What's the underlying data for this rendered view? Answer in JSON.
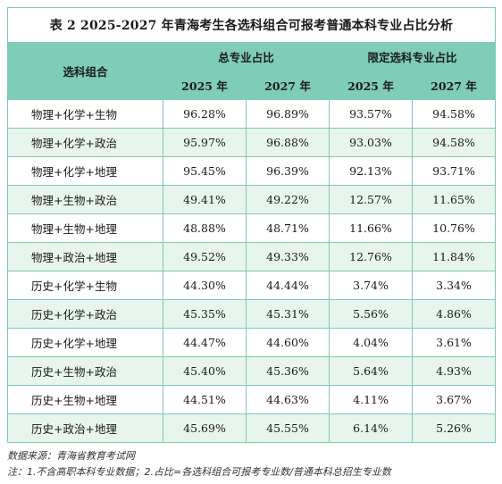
{
  "title": "表 2  2025-2027 年青海考生各选科组合可报考普通本科专业占比分析",
  "headers": {
    "combo": "选科组合",
    "group_total": "总专业占比",
    "group_limited": "限定选科专业占比",
    "years": [
      "2025 年",
      "2027 年",
      "2025 年",
      "2027 年"
    ]
  },
  "rows": [
    {
      "combo": "物理+化学+生物",
      "t2025": "96.28%",
      "t2027": "96.89%",
      "l2025": "93.57%",
      "l2027": "94.58%"
    },
    {
      "combo": "物理+化学+政治",
      "t2025": "95.97%",
      "t2027": "96.88%",
      "l2025": "93.03%",
      "l2027": "94.58%"
    },
    {
      "combo": "物理+化学+地理",
      "t2025": "95.45%",
      "t2027": "96.39%",
      "l2025": "92.13%",
      "l2027": "93.71%"
    },
    {
      "combo": "物理+生物+政治",
      "t2025": "49.41%",
      "t2027": "49.22%",
      "l2025": "12.57%",
      "l2027": "11.65%"
    },
    {
      "combo": "物理+生物+地理",
      "t2025": "48.88%",
      "t2027": "48.71%",
      "l2025": "11.66%",
      "l2027": "10.76%"
    },
    {
      "combo": "物理+政治+地理",
      "t2025": "49.52%",
      "t2027": "49.33%",
      "l2025": "12.76%",
      "l2027": "11.84%"
    },
    {
      "combo": "历史+化学+生物",
      "t2025": "44.30%",
      "t2027": "44.44%",
      "l2025": "3.74%",
      "l2027": "3.34%"
    },
    {
      "combo": "历史+化学+政治",
      "t2025": "45.35%",
      "t2027": "45.31%",
      "l2025": "5.56%",
      "l2027": "4.86%"
    },
    {
      "combo": "历史+化学+地理",
      "t2025": "44.47%",
      "t2027": "44.60%",
      "l2025": "4.04%",
      "l2027": "3.61%"
    },
    {
      "combo": "历史+生物+政治",
      "t2025": "45.40%",
      "t2027": "45.36%",
      "l2025": "5.64%",
      "l2027": "4.93%"
    },
    {
      "combo": "历史+生物+地理",
      "t2025": "44.51%",
      "t2027": "44.63%",
      "l2025": "4.11%",
      "l2027": "3.67%"
    },
    {
      "combo": "历史+政治+地理",
      "t2025": "45.69%",
      "t2027": "45.55%",
      "l2025": "6.14%",
      "l2027": "5.26%"
    }
  ],
  "notes": {
    "source": "数据来源：青海省教育考试网",
    "note": "注：1.不含高职本科专业数据；2.占比=各选科组合可报考专业数/普通本科总招生专业数"
  },
  "colors": {
    "header_bg": "#7fccb8",
    "alt_row_bg": "#e8f5ec",
    "border": "#7fc9b6"
  }
}
